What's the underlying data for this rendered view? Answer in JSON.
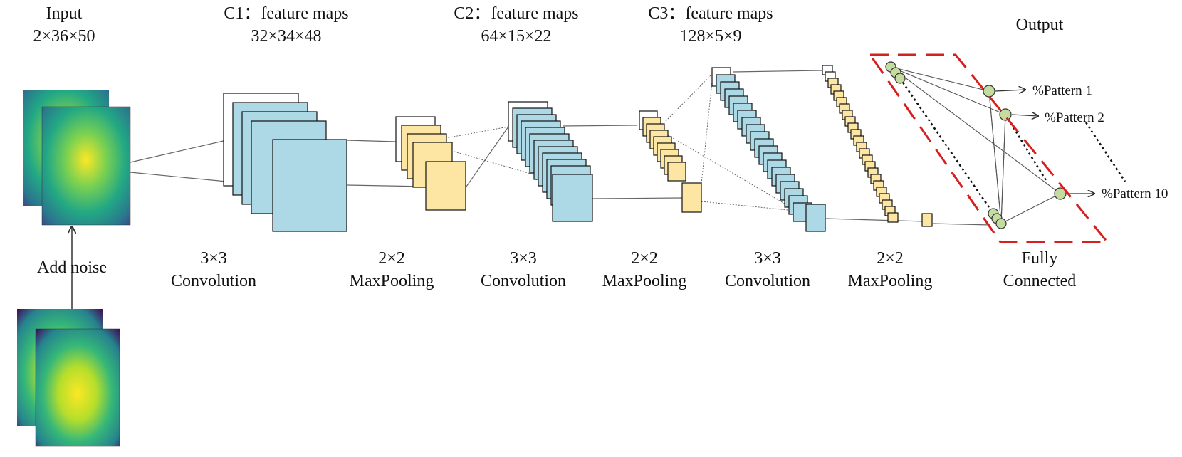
{
  "input": {
    "title": "Input",
    "size": "2×36×50"
  },
  "noise": "Add noise",
  "layers": {
    "c1": {
      "title": "C1：feature maps",
      "size": "32×34×48"
    },
    "c2": {
      "title": "C2：feature maps",
      "size": "64×15×22"
    },
    "c3": {
      "title": "C3：feature maps",
      "size": "128×5×9"
    }
  },
  "ops": [
    {
      "line1": "3×3",
      "line2": "Convolution"
    },
    {
      "line1": "2×2",
      "line2": "MaxPooling"
    },
    {
      "line1": "3×3",
      "line2": "Convolution"
    },
    {
      "line1": "2×2",
      "line2": "MaxPooling"
    },
    {
      "line1": "3×3",
      "line2": "Convolution"
    },
    {
      "line1": "2×2",
      "line2": "MaxPooling"
    }
  ],
  "fc": {
    "line1": "Fully",
    "line2": "Connected"
  },
  "output": {
    "title": "Output",
    "patterns": [
      "%Pattern 1",
      "%Pattern 2",
      "%Pattern 10"
    ]
  },
  "colors": {
    "conv": "#add8e6",
    "pool": "#fde6a4",
    "neuron": "#c5dca0",
    "box": "#d61f1f",
    "line": "#555555"
  }
}
